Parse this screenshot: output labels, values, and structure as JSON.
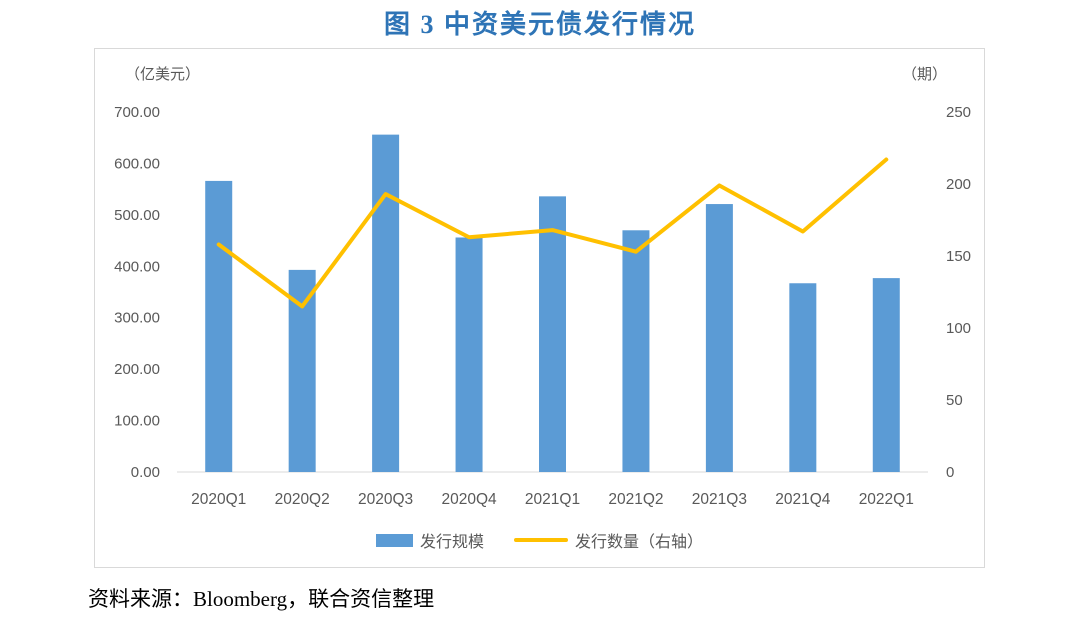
{
  "title": "图 3 中资美元债发行情况",
  "source_note": "资料来源：Bloomberg，联合资信整理",
  "colors": {
    "title": "#2E74B6",
    "bar": "#5B9BD5",
    "line": "#FFC000",
    "axis_text": "#595959",
    "border": "#D9D9D9"
  },
  "chart_data": {
    "type": "bar",
    "subtype": "bar+line combo",
    "categories": [
      "2020Q1",
      "2020Q2",
      "2020Q3",
      "2020Q4",
      "2021Q1",
      "2021Q2",
      "2021Q3",
      "2021Q4",
      "2022Q1"
    ],
    "series": [
      {
        "name": "发行规模",
        "type": "bar",
        "axis": "left",
        "color": "#5B9BD5",
        "values": [
          566,
          393,
          656,
          456,
          536,
          470,
          521,
          367,
          377
        ]
      },
      {
        "name": "发行数量（右轴）",
        "type": "line",
        "axis": "right",
        "color": "#FFC000",
        "values": [
          158,
          115,
          193,
          163,
          168,
          153,
          199,
          167,
          217
        ]
      }
    ],
    "left_axis": {
      "label": "（亿美元）",
      "min": 0,
      "max": 700,
      "step": 100,
      "decimals": 2
    },
    "right_axis": {
      "label": "（期）",
      "min": 0,
      "max": 250,
      "step": 50,
      "decimals": 0
    },
    "legend_position": "bottom",
    "grid": false,
    "title": "图 3 中资美元债发行情况"
  }
}
